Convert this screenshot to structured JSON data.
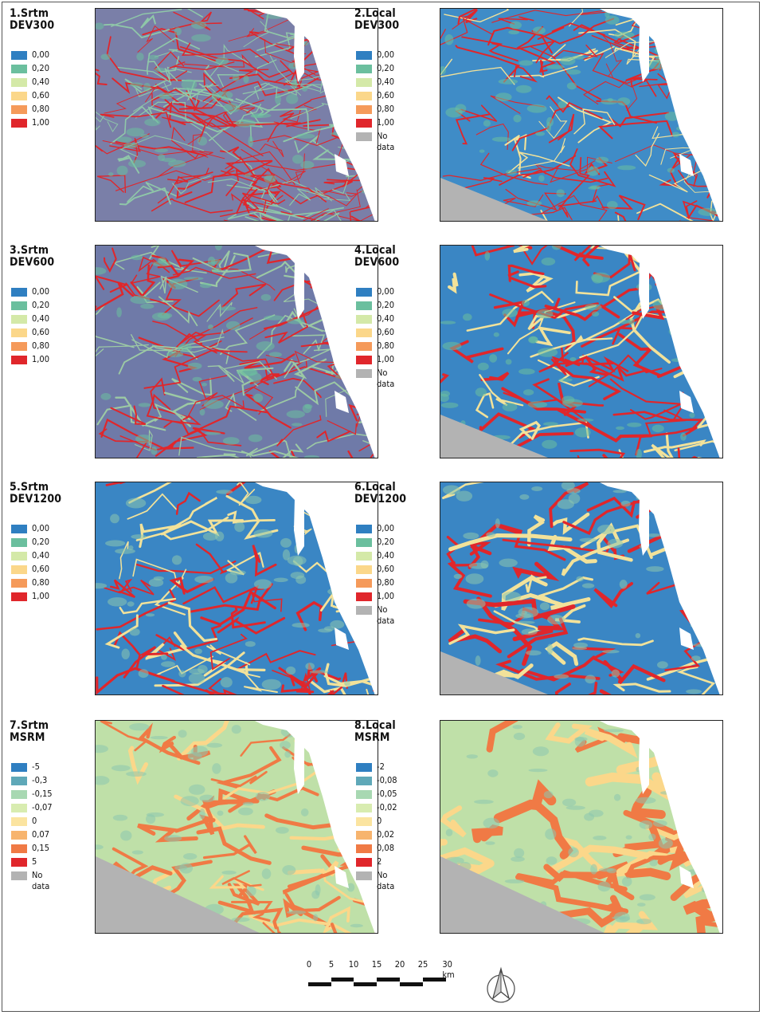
{
  "panels": [
    {
      "title": "1.Srtm\nDEV300",
      "legend": [
        "0,00",
        "0,20",
        "0,40",
        "0,60",
        "0,80",
        "1,00"
      ],
      "colors": [
        "#2f7fc1",
        "#6bbf9e",
        "#d4e9a8",
        "#fbd78a",
        "#f59a5a",
        "#e0262b"
      ]
    },
    {
      "title": "2.Local\nDEV300",
      "legend": [
        "0,00",
        "0,20",
        "0,40",
        "0,60",
        "0,80",
        "1,00",
        "No\ndata"
      ],
      "colors": [
        "#2f7fc1",
        "#6bbf9e",
        "#d4e9a8",
        "#fbd78a",
        "#f59a5a",
        "#e0262b",
        "#b3b3b3"
      ]
    },
    {
      "title": "3.Srtm\nDEV600",
      "legend": [
        "0,00",
        "0,20",
        "0,40",
        "0,60",
        "0,80",
        "1,00"
      ],
      "colors": [
        "#2f7fc1",
        "#6bbf9e",
        "#d4e9a8",
        "#fbd78a",
        "#f59a5a",
        "#e0262b"
      ]
    },
    {
      "title": "4.Local\nDEV600",
      "legend": [
        "0,00",
        "0,20",
        "0,40",
        "0,60",
        "0,80",
        "1,00",
        "No\ndata"
      ],
      "colors": [
        "#2f7fc1",
        "#6bbf9e",
        "#d4e9a8",
        "#fbd78a",
        "#f59a5a",
        "#e0262b",
        "#b3b3b3"
      ]
    },
    {
      "title": "5.Srtm\nDEV1200",
      "legend": [
        "0,00",
        "0,20",
        "0,40",
        "0,60",
        "0,80",
        "1,00"
      ],
      "colors": [
        "#2f7fc1",
        "#6bbf9e",
        "#d4e9a8",
        "#fbd78a",
        "#f59a5a",
        "#e0262b"
      ]
    },
    {
      "title": "6.Local\nDEV1200",
      "legend": [
        "0,00",
        "0,20",
        "0,40",
        "0,60",
        "0,80",
        "1,00",
        "No\ndata"
      ],
      "colors": [
        "#2f7fc1",
        "#6bbf9e",
        "#d4e9a8",
        "#fbd78a",
        "#f59a5a",
        "#e0262b",
        "#b3b3b3"
      ]
    },
    {
      "title": "7.Srtm\nMSRM",
      "legend": [
        "-5",
        "-0,3",
        "-0,15",
        "-0,07",
        "0",
        "0,07",
        "0,15",
        "5",
        "No\ndata"
      ],
      "colors": [
        "#2f7fc1",
        "#5fa8b8",
        "#a8d8b2",
        "#d8ecb0",
        "#fbe4a0",
        "#f7b46e",
        "#f07a45",
        "#e0262b",
        "#b3b3b3"
      ]
    },
    {
      "title": "8.Local\nMSRM",
      "legend": [
        "-2",
        "-0,08",
        "-0,05",
        "-0,02",
        "0",
        "0,02",
        "0,08",
        "2",
        "No\ndata"
      ],
      "colors": [
        "#2f7fc1",
        "#5fa8b8",
        "#a8d8b2",
        "#d8ecb0",
        "#fbe4a0",
        "#f7b46e",
        "#f07a45",
        "#e0262b",
        "#b3b3b3"
      ]
    }
  ],
  "scale": {
    "labels": [
      "0",
      "5",
      "10",
      "15",
      "20",
      "25",
      "30 km"
    ]
  }
}
